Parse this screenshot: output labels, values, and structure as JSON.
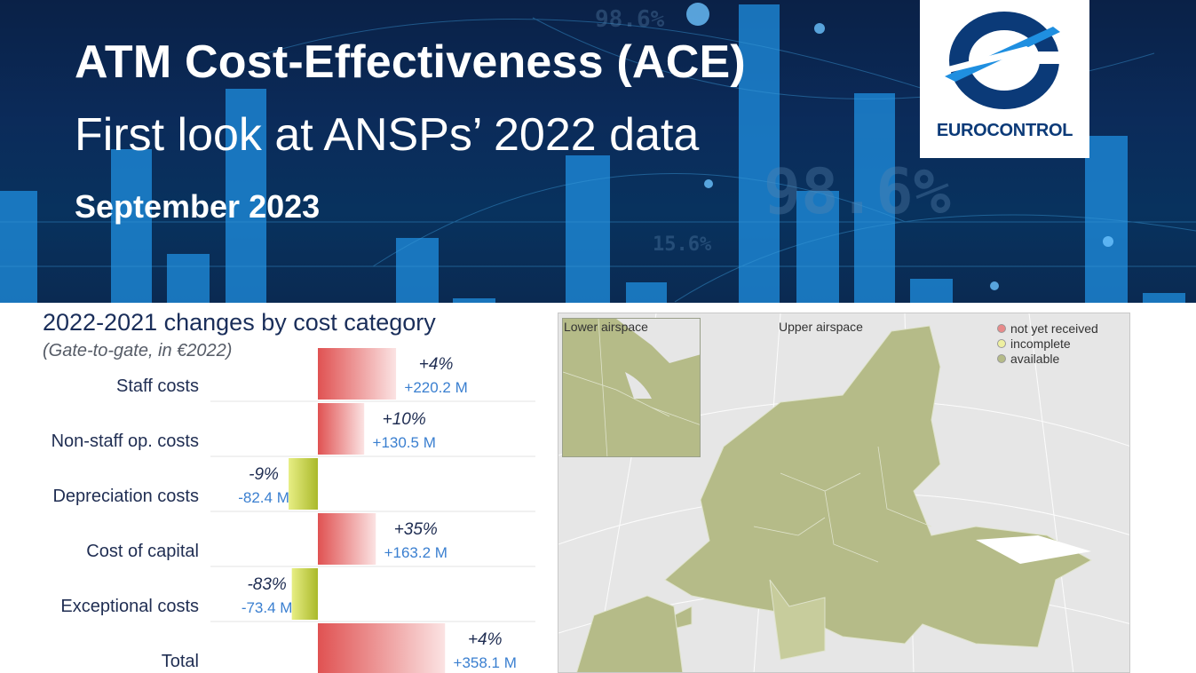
{
  "header": {
    "title": "ATM Cost-Effectiveness (ACE)",
    "subtitle": "First look at ANSPs’ 2022 data",
    "date": "September 2023",
    "logo_text": "EUROCONTROL"
  },
  "chart_data": {
    "type": "bar",
    "title": "2022-2021 changes by cost category",
    "subtitle": "(Gate-to-gate, in €2022)",
    "categories": [
      "Staff costs",
      "Non-staff op. costs",
      "Depreciation costs",
      "Cost of capital",
      "Exceptional costs",
      "Total"
    ],
    "values": [
      220.2,
      130.5,
      -82.4,
      163.2,
      -73.4,
      358.1
    ],
    "value_labels": [
      "+220.2 M",
      "+130.5 M",
      "-82.4 M",
      "+163.2 M",
      "-73.4 M",
      "+358.1 M"
    ],
    "pct_labels": [
      "+4%",
      "+10%",
      "-9%",
      "+35%",
      "-83%",
      "+4%"
    ],
    "unit": "M€",
    "colors": {
      "positive": "#e05252",
      "negative": "#b8c232",
      "pct_text": "#1f2d52",
      "value_text": "#3a7fd0"
    }
  },
  "map": {
    "label_lower": "Lower airspace",
    "label_upper": "Upper airspace",
    "legend": [
      {
        "label": "not yet received",
        "color": "#e88a8a"
      },
      {
        "label": "incomplete",
        "color": "#eef0a0"
      },
      {
        "label": "available",
        "color": "#b5bb88"
      }
    ]
  }
}
